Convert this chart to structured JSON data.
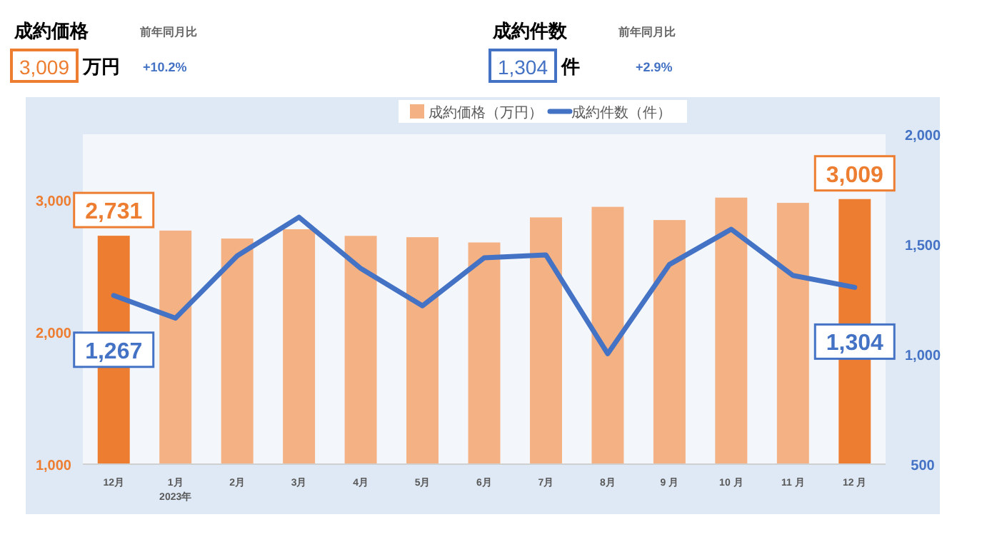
{
  "chart_data": {
    "type": "bar",
    "categories": [
      "12月",
      "1月\n2023年",
      "2月",
      "3月",
      "4月",
      "5月",
      "6月",
      "7月",
      "8月",
      "9 月",
      "10 月",
      "11 月",
      "12 月"
    ],
    "series": [
      {
        "name": "成約価格（万円）",
        "colors": [
          "#ed7d31",
          "#f4b183",
          "#f4b183",
          "#f4b183",
          "#f4b183",
          "#f4b183",
          "#f4b183",
          "#f4b183",
          "#f4b183",
          "#f4b183",
          "#f4b183",
          "#f4b183",
          "#ed7d31"
        ],
        "values": [
          2731,
          2770,
          2710,
          2780,
          2730,
          2720,
          2680,
          2870,
          2950,
          2850,
          3020,
          2980,
          3009
        ],
        "value_labels": [
          "2,731",
          null,
          null,
          null,
          null,
          null,
          null,
          null,
          null,
          null,
          null,
          null,
          "3,009"
        ]
      },
      {
        "name": "成約件数（件）",
        "type": "line",
        "axis": "y2",
        "color": "#4472c4",
        "values": [
          1267,
          1164,
          1447,
          1623,
          1390,
          1220,
          1438,
          1451,
          1002,
          1408,
          1568,
          1358,
          1304
        ],
        "value_labels": [
          "1,267",
          null,
          null,
          null,
          null,
          null,
          null,
          null,
          null,
          null,
          null,
          null,
          "1,304"
        ]
      }
    ],
    "ylim": [
      1000,
      3500
    ],
    "yticks": [
      {
        "value": 1000,
        "label": "1,000"
      },
      {
        "value": 2000,
        "label": "2,000"
      },
      {
        "value": 3000,
        "label": "3,000"
      }
    ],
    "y2lim": [
      500,
      2000
    ],
    "y2ticks": [
      {
        "value": 500,
        "label": "500"
      },
      {
        "value": 1000,
        "label": "1,000"
      },
      {
        "value": 1500,
        "label": "1,500"
      },
      {
        "value": 2000,
        "label": "2,000"
      }
    ],
    "grid": false,
    "legend": "top",
    "marker": "none",
    "annotations": [
      "成約価格",
      "3,009",
      "万円",
      "前年同月比",
      "+10.2%",
      "成約件数",
      "1,304",
      "件",
      "前年同月比",
      "+2.9%"
    ]
  }
}
